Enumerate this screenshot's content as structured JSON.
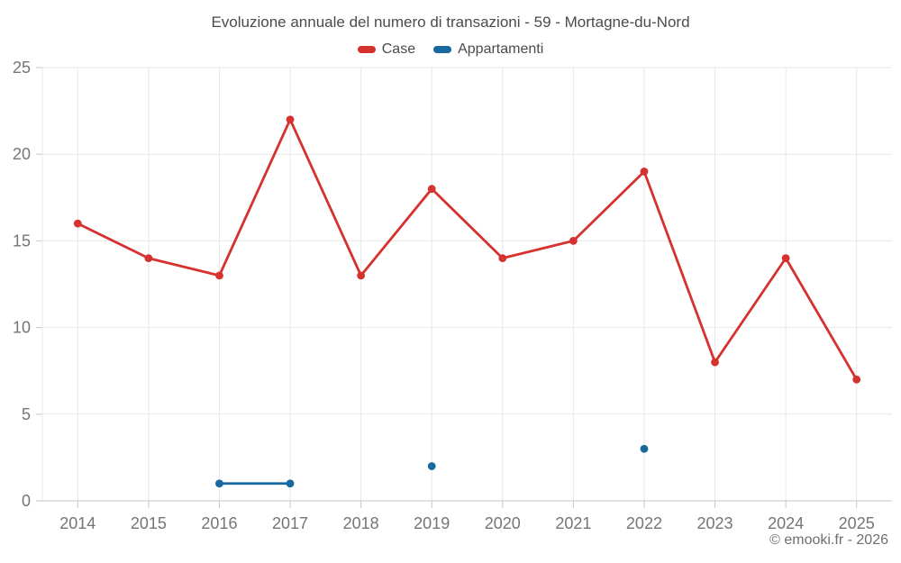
{
  "title": "Evoluzione annuale del numero di transazioni - 59 - Mortagne-du-Nord",
  "copyright": "© emooki.fr - 2026",
  "colors": {
    "case_red": "#d5312e",
    "appartamenti_blue": "#17699f",
    "grid": "#e8e8e8",
    "axis": "#c6c6c6",
    "tick_label": "#757575",
    "title_text": "#4b4b4b"
  },
  "chart_data": {
    "type": "line",
    "title": "Evoluzione annuale del numero di transazioni - 59 - Mortagne-du-Nord",
    "categories": [
      "2014",
      "2015",
      "2016",
      "2017",
      "2018",
      "2019",
      "2020",
      "2021",
      "2022",
      "2023",
      "2024",
      "2025"
    ],
    "series": [
      {
        "name": "Case",
        "color": "#d5312e",
        "values": [
          16,
          14,
          13,
          22,
          13,
          18,
          14,
          15,
          19,
          8,
          14,
          7
        ]
      },
      {
        "name": "Appartamenti",
        "color": "#17699f",
        "values": [
          null,
          null,
          1,
          1,
          null,
          2,
          null,
          null,
          3,
          null,
          null,
          null
        ]
      }
    ],
    "xlabel": "",
    "ylabel": "",
    "ylim": [
      0,
      25
    ],
    "yticks": [
      0,
      5,
      10,
      15,
      20,
      25
    ],
    "grid": true,
    "legend_position": "top"
  }
}
